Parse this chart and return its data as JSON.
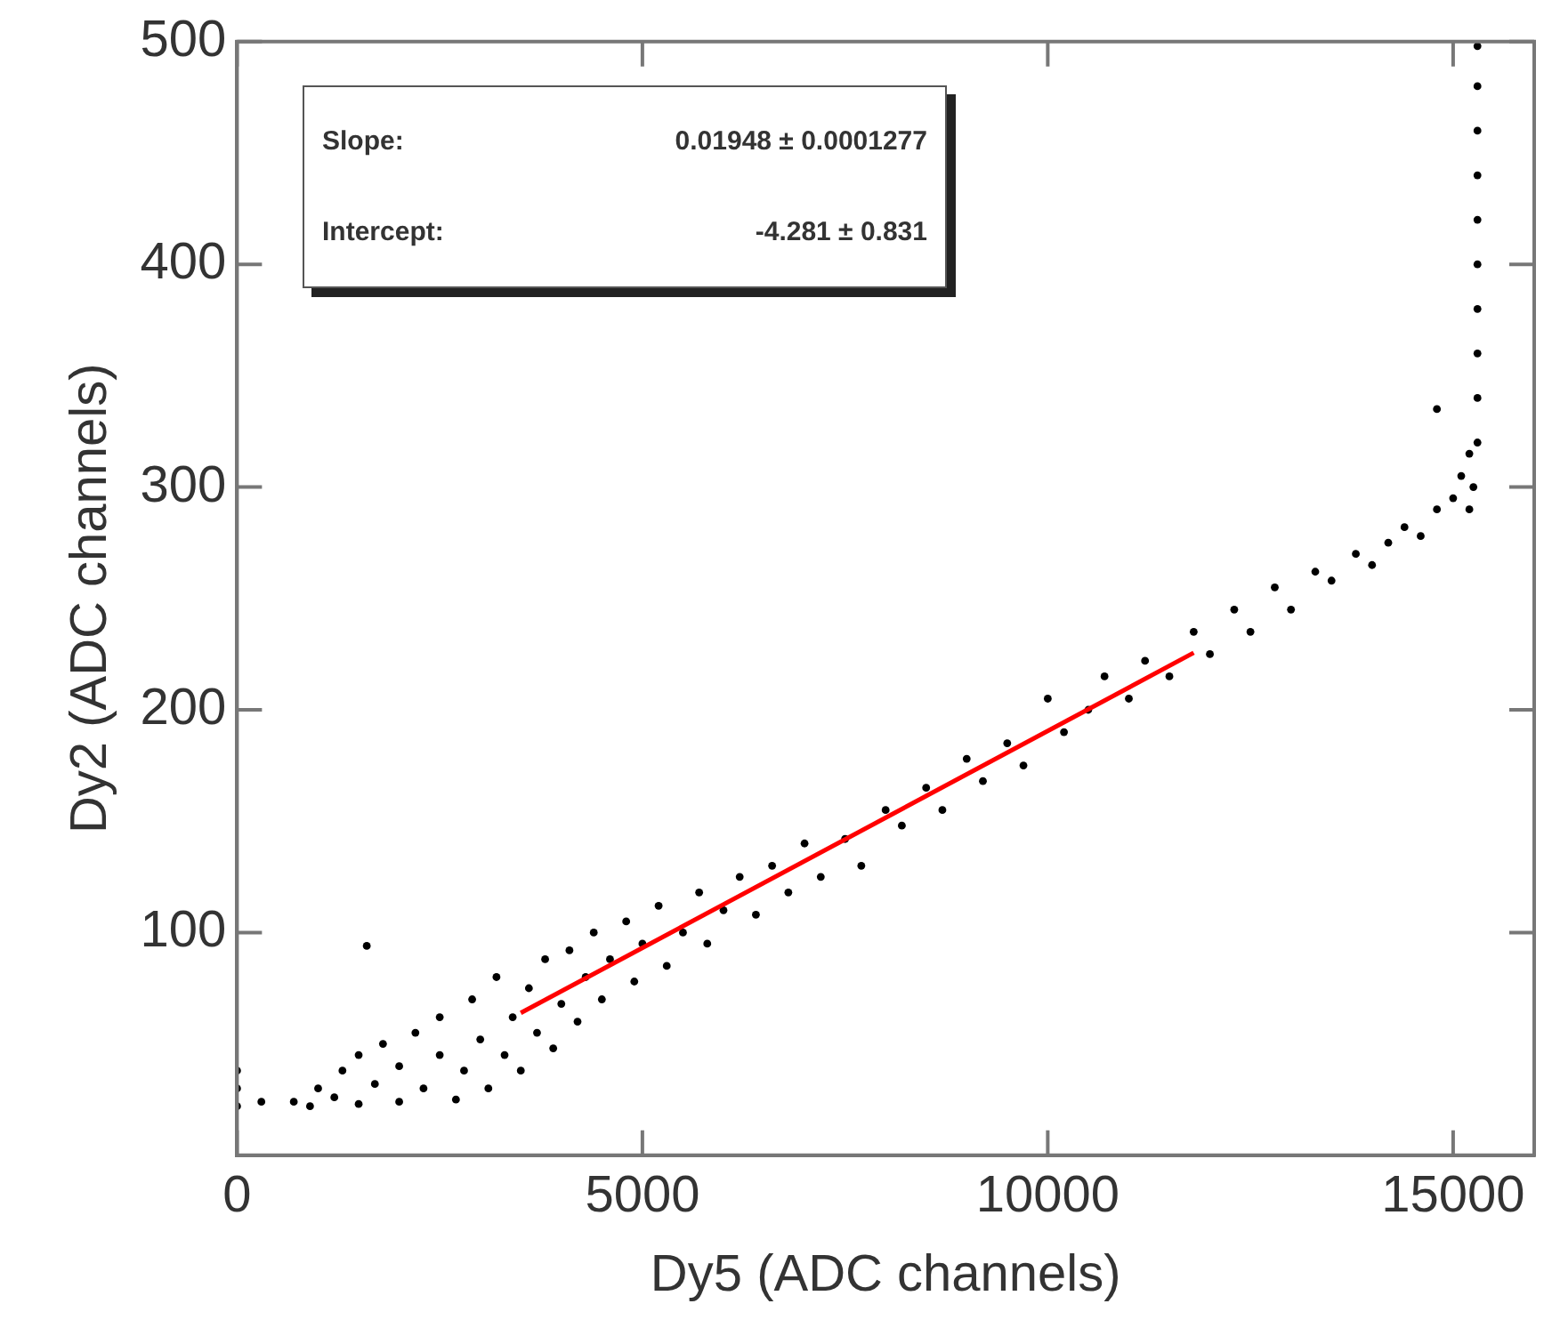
{
  "chart_data": {
    "type": "scatter",
    "xlabel": "Dy5 (ADC channels)",
    "ylabel": "Dy2 (ADC channels)",
    "annotations": [
      "Slope:   0.01948 ± 0.0001277",
      "Intercept:   -4.281 ± 0.831"
    ],
    "xlim": [
      0,
      16000
    ],
    "xticks": [
      0,
      5000,
      10000,
      15000
    ],
    "ylim": [
      0,
      500
    ],
    "yticks": [
      100,
      200,
      300,
      400,
      500
    ],
    "grid": false,
    "legend": false,
    "marker": "circle",
    "series": [
      {
        "color": "#000000",
        "x": [
          0,
          0,
          0,
          300,
          700,
          900,
          1000,
          1200,
          1300,
          1500,
          1500,
          1600,
          1700,
          1800,
          2000,
          2000,
          2200,
          2300,
          2500,
          2500,
          2700,
          2800,
          2900,
          3000,
          3100,
          3200,
          3300,
          3400,
          3500,
          3600,
          3700,
          3800,
          3900,
          4000,
          4100,
          4200,
          4300,
          4400,
          4500,
          4600,
          4800,
          4900,
          5000,
          5200,
          5300,
          5500,
          5700,
          5800,
          6000,
          6200,
          6400,
          6600,
          6800,
          7000,
          7200,
          7500,
          7700,
          8000,
          8200,
          8500,
          8700,
          9000,
          9200,
          9500,
          9700,
          10000,
          10200,
          10500,
          10700,
          11000,
          11200,
          11500,
          11800,
          12000,
          12300,
          12500,
          12800,
          13000,
          13300,
          13500,
          13800,
          14000,
          14200,
          14400,
          14600,
          14800,
          14800,
          15000,
          15100,
          15200,
          15200,
          15250,
          15300,
          15300,
          15300,
          15300,
          15300,
          15300,
          15300,
          15300,
          15300,
          15300
        ],
        "values": [
          22,
          30,
          38,
          24,
          24,
          22,
          30,
          26,
          38,
          23,
          45,
          94,
          32,
          50,
          24,
          40,
          55,
          30,
          45,
          62,
          25,
          38,
          70,
          52,
          30,
          80,
          45,
          62,
          38,
          75,
          55,
          88,
          48,
          68,
          92,
          60,
          80,
          100,
          70,
          88,
          105,
          78,
          95,
          112,
          85,
          100,
          118,
          95,
          110,
          125,
          108,
          130,
          118,
          140,
          125,
          142,
          130,
          155,
          148,
          165,
          155,
          178,
          168,
          185,
          175,
          205,
          190,
          200,
          215,
          205,
          222,
          215,
          235,
          225,
          245,
          235,
          255,
          245,
          262,
          258,
          270,
          265,
          275,
          282,
          278,
          290,
          335,
          295,
          305,
          290,
          315,
          300,
          320,
          340,
          360,
          380,
          400,
          420,
          440,
          460,
          480,
          498
        ]
      },
      {
        "type": "line",
        "color": "#ff0000",
        "line_style": "solid",
        "marker": "none",
        "x": [
          3500,
          11800
        ],
        "values": [
          63.9,
          225.6
        ]
      }
    ]
  }
}
